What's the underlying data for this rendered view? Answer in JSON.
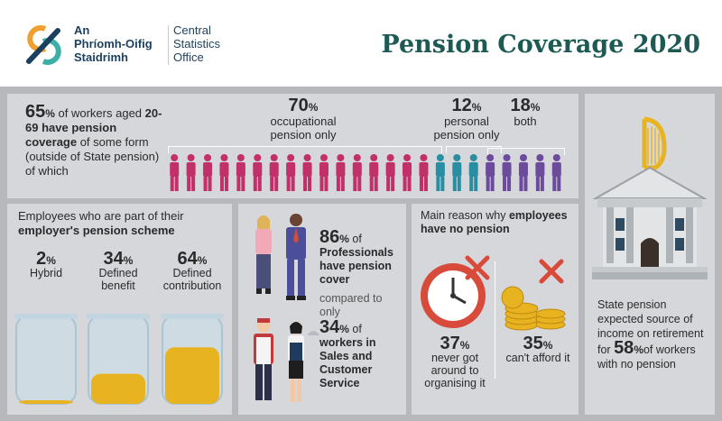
{
  "header": {
    "org_irish_line1": "An",
    "org_irish_line2": "Phríomh-Oifig",
    "org_irish_line3": "Staidrimh",
    "org_english_line1": "Central",
    "org_english_line2": "Statistics",
    "org_english_line3": "Office",
    "title": "Pension Coverage 2020"
  },
  "top": {
    "coverage_pct": "65",
    "coverage_text_1": " of workers aged ",
    "coverage_bold": "20-69 have pension coverage",
    "coverage_text_2": " of some form (outside of State pension) of which",
    "occupational_pct": "70",
    "occupational_label": "occupational pension only",
    "personal_pct": "12",
    "personal_label": "personal pension only",
    "both_pct": "18",
    "both_label": "both",
    "colors": {
      "occupational": "#c2306a",
      "personal": "#2a8ea3",
      "both": "#6c4b9c"
    }
  },
  "employees": {
    "title_1": "Employees who are part of their ",
    "title_bold": "employer's pension scheme",
    "jars": [
      {
        "pct": "2",
        "label": "Hybrid",
        "fill": 0.02
      },
      {
        "pct": "34",
        "label": "Defined benefit",
        "fill": 0.34
      },
      {
        "pct": "64",
        "label": "Defined contribution",
        "fill": 0.64
      }
    ]
  },
  "professionals": {
    "pct_prof": "86",
    "text_prof_1": " of ",
    "text_prof_bold": "Professionals have pension cover",
    "compared": "compared to only",
    "pct_sales": "34",
    "text_sales_1": " of ",
    "text_sales_bold": "workers in Sales and Customer Service"
  },
  "reason": {
    "title_1": "Main reason why ",
    "title_bold": "employees have no pension",
    "stat1_pct": "37",
    "stat1_label": "never got around to organising it",
    "stat2_pct": "35",
    "stat2_label": "can't afford it"
  },
  "state": {
    "text_1": "State pension expected source of income on retirement for ",
    "pct": "58",
    "text_2": "of workers with no pension"
  },
  "pct_sign": "%"
}
